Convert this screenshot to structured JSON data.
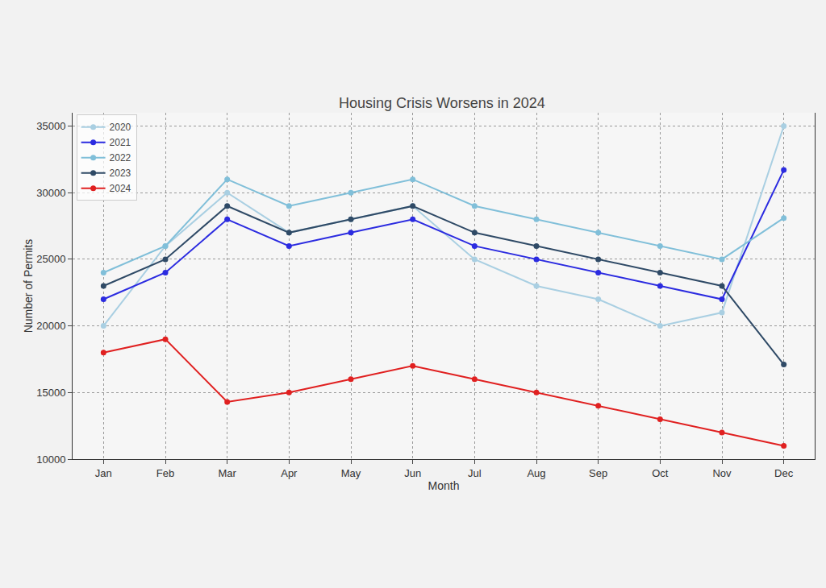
{
  "chart_data": {
    "type": "line",
    "title": "Housing Crisis Worsens in 2024",
    "x_label": "Month",
    "y_label": "Number of Permits",
    "categories": [
      "Jan",
      "Feb",
      "Mar",
      "Apr",
      "May",
      "Jun",
      "Jul",
      "Aug",
      "Sep",
      "Oct",
      "Nov",
      "Dec"
    ],
    "series": [
      {
        "name": "2020",
        "color": "#a9cfe2",
        "values": [
          20000,
          26000,
          30000,
          27000,
          28000,
          29000,
          25000,
          23000,
          22000,
          20000,
          21000,
          35000
        ]
      },
      {
        "name": "2021",
        "color": "#2b2be0",
        "values": [
          22000,
          24000,
          28000,
          26000,
          27000,
          28000,
          26000,
          25000,
          24000,
          23000,
          22000,
          31700
        ]
      },
      {
        "name": "2022",
        "color": "#80bfd9",
        "values": [
          24000,
          26000,
          31000,
          29000,
          30000,
          31000,
          29000,
          28000,
          27000,
          26000,
          25000,
          28100
        ]
      },
      {
        "name": "2023",
        "color": "#2f4a66",
        "values": [
          23000,
          25000,
          29000,
          27000,
          28000,
          29000,
          27000,
          26000,
          25000,
          24000,
          23000,
          17100
        ]
      },
      {
        "name": "2024",
        "color": "#e02020",
        "values": [
          18000,
          19000,
          14300,
          15000,
          16000,
          17000,
          16000,
          15000,
          14000,
          13000,
          12000,
          11000
        ]
      }
    ],
    "ylim": [
      10000,
      36000
    ],
    "yticks": [
      10000,
      15000,
      20000,
      25000,
      30000,
      35000
    ],
    "grid": true,
    "legend": "upper left",
    "marker": "circle"
  }
}
